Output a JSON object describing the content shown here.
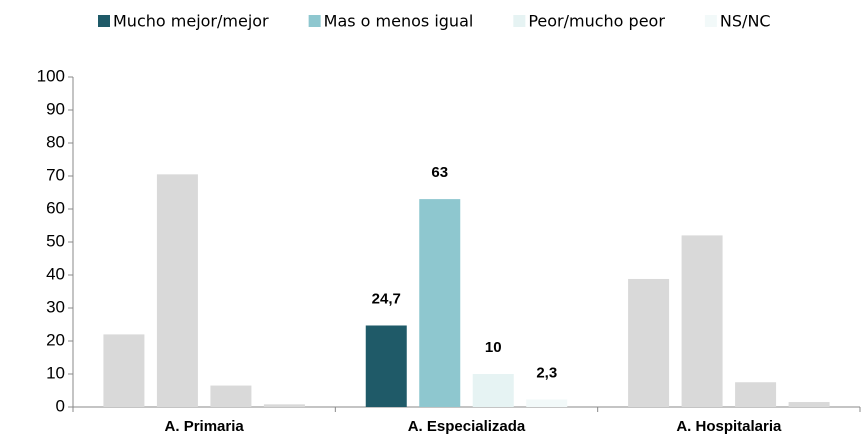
{
  "chart_data": {
    "type": "bar",
    "categories": [
      "A. Primaria",
      "A. Especializada",
      "A. Hospitalaria"
    ],
    "series": [
      {
        "name": "Mucho mejor/mejor",
        "color": "#1f5a68",
        "colors": [
          "#d9d9d9",
          "#1f5a68",
          "#d9d9d9"
        ],
        "values": [
          22,
          24.7,
          38.8
        ],
        "value_labels": [
          null,
          "24,7",
          null
        ]
      },
      {
        "name": "Mas o menos igual",
        "color": "#8ec7cf",
        "colors": [
          "#d9d9d9",
          "#8ec7cf",
          "#d9d9d9"
        ],
        "values": [
          70.5,
          63,
          52
        ],
        "value_labels": [
          null,
          "63",
          null
        ]
      },
      {
        "name": "Peor/mucho peor",
        "color": "#e6f3f3",
        "colors": [
          "#d9d9d9",
          "#e6f3f3",
          "#d9d9d9"
        ],
        "values": [
          6.5,
          10,
          7.5
        ],
        "value_labels": [
          null,
          "10",
          null
        ]
      },
      {
        "name": "NS/NC",
        "color": "#f2f9f9",
        "colors": [
          "#d9d9d9",
          "#f2f9f9",
          "#d9d9d9"
        ],
        "values": [
          0.8,
          2.3,
          1.5
        ],
        "value_labels": [
          null,
          "2,3",
          null
        ]
      }
    ],
    "ylim": [
      0,
      100
    ],
    "yticks": [
      0,
      10,
      20,
      30,
      40,
      50,
      60,
      70,
      80,
      90,
      100
    ],
    "legend": "top"
  }
}
